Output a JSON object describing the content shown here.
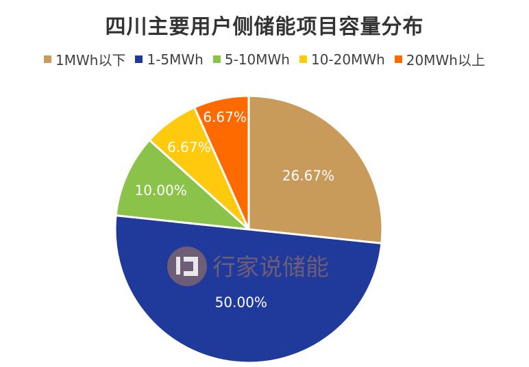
{
  "chart_data": {
    "type": "pie",
    "title": "四川主要用户侧储能项目容量分布",
    "categories": [
      "1MWh以下",
      "1-5MWh",
      "5-10MWh",
      "10-20MWh",
      "20MWh以上"
    ],
    "values": [
      26.67,
      50.0,
      10.0,
      6.67,
      6.67
    ],
    "labels": [
      "26.67%",
      "50.00%",
      "10.00%",
      "6.67%",
      "6.67%"
    ],
    "colors": [
      "#C89B5A",
      "#1F3A9A",
      "#8BC34A",
      "#FFC90E",
      "#FF6A00"
    ],
    "start": "12 o'clock",
    "direction": "clockwise",
    "legend_position": "top"
  },
  "watermark": {
    "text": "行家说储能",
    "logo_icon": "ip-logo-icon"
  }
}
